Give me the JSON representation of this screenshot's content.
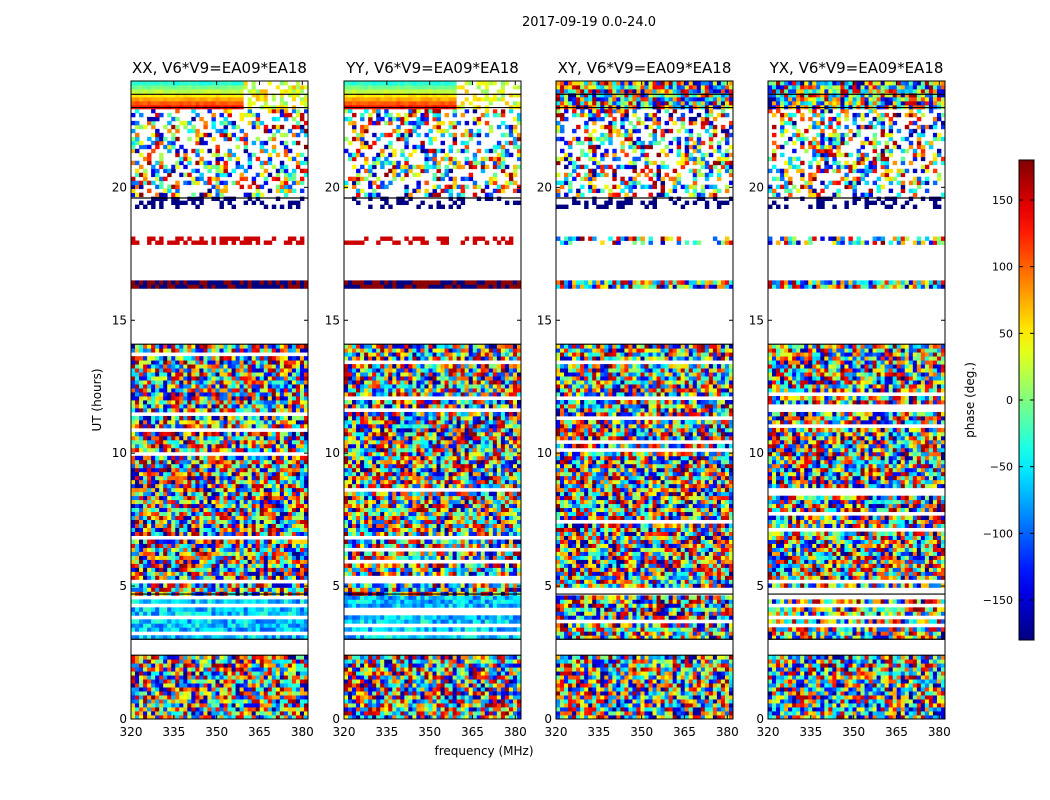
{
  "figure": {
    "suptitle": "2017-09-19 0.0-24.0",
    "xlabel": "frequency (MHz)",
    "ylabel": "UT (hours)",
    "colorbar_label": "phase (deg.)"
  },
  "chart_data": {
    "type": "heatmap",
    "description_source": "dynamic spectrum of visibility phase, four polarization panels",
    "panels": [
      {
        "title": "XX, V6*V9=EA09*EA18",
        "polarization": "XX"
      },
      {
        "title": "YY, V6*V9=EA09*EA18",
        "polarization": "YY"
      },
      {
        "title": "XY, V6*V9=EA09*EA18",
        "polarization": "XY"
      },
      {
        "title": "YX, V6*V9=EA09*EA18",
        "polarization": "YX"
      }
    ],
    "x": {
      "label": "frequency (MHz)",
      "range": [
        320,
        382
      ],
      "ticks": [
        320,
        335,
        350,
        365,
        380
      ],
      "tick_labels": [
        "320",
        "335",
        "350",
        "365",
        "380"
      ]
    },
    "y": {
      "label": "UT (hours)",
      "range": [
        0,
        24
      ],
      "ticks": [
        0,
        5,
        10,
        15,
        20
      ],
      "tick_labels": [
        "0",
        "5",
        "10",
        "15",
        "20"
      ]
    },
    "colorbar": {
      "label": "phase (deg.)",
      "colormap": "jet",
      "range": [
        -180,
        180
      ],
      "ticks": [
        -150,
        -100,
        -50,
        0,
        50,
        100,
        150
      ],
      "tick_labels": [
        "−150",
        "−100",
        "−50",
        "0",
        "50",
        "100",
        "150"
      ]
    },
    "data_gaps_UT_hours": [
      [
        2.4,
        3.0
      ],
      [
        14.1,
        16.2
      ],
      [
        16.5,
        17.8
      ],
      [
        18.1,
        19.2
      ]
    ],
    "colors": {
      "frame": "#000000",
      "background": "#ffffff"
    }
  }
}
